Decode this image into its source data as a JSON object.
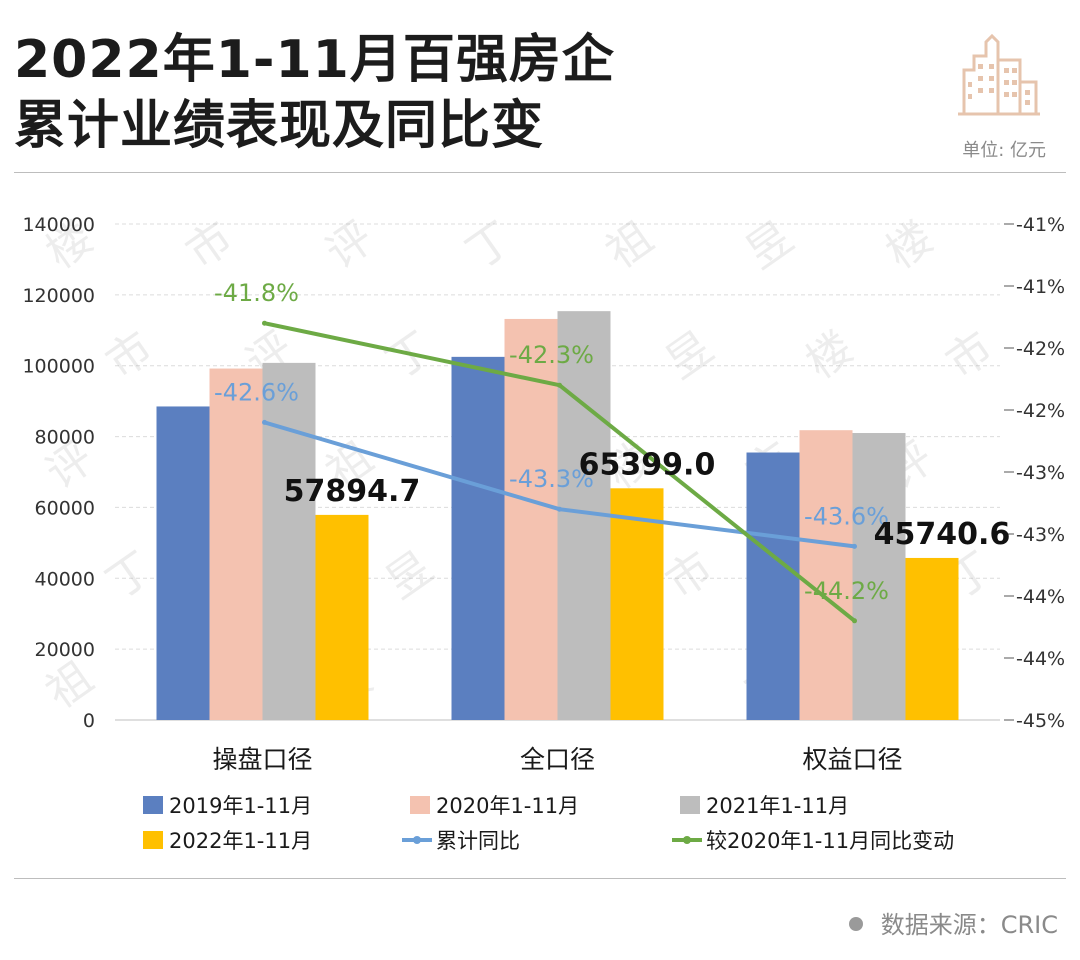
{
  "header": {
    "title_line1": "2022年1-11月百强房企",
    "title_line2": "累计业绩表现及同比变",
    "unit": "单位: 亿元"
  },
  "footer": {
    "source": "数据来源：CRIC"
  },
  "colors": {
    "s2019": "#5b7fc0",
    "s2020": "#f4c2b0",
    "s2021": "#bdbdbd",
    "s2022": "#ffc000",
    "yoy": "#6a9fd8",
    "vs2020": "#6daa45",
    "logo": "#e6c4ad"
  },
  "chart_data": {
    "type": "bar",
    "categories": [
      "操盘口径",
      "全口径",
      "权益口径"
    ],
    "series": [
      {
        "name": "2019年1-11月",
        "values": [
          88500,
          102500,
          75500
        ]
      },
      {
        "name": "2020年1-11月",
        "values": [
          99200,
          113200,
          81800
        ]
      },
      {
        "name": "2021年1-11月",
        "values": [
          100800,
          115400,
          81000
        ]
      },
      {
        "name": "2022年1-11月",
        "values": [
          57894.7,
          65399.0,
          45740.6
        ],
        "labels": [
          "57894.7",
          "65399.0",
          "45740.6"
        ]
      }
    ],
    "lines": [
      {
        "name": "累计同比",
        "axis": "right",
        "values": [
          -42.6,
          -43.3,
          -43.6
        ],
        "labels": [
          "-42.6%",
          "-43.3%",
          "-43.6%"
        ]
      },
      {
        "name": "较2020年1-11月同比变动",
        "axis": "right",
        "values": [
          -41.8,
          -42.3,
          -44.2
        ],
        "labels": [
          "-41.8%",
          "-42.3%",
          "-44.2%"
        ]
      }
    ],
    "y_left": {
      "ticks": [
        "0",
        "20000",
        "40000",
        "60000",
        "80000",
        "100000",
        "120000",
        "140000"
      ],
      "range": [
        0,
        140000
      ]
    },
    "y_right": {
      "ticks": [
        "-45%",
        "-44%",
        "-44%",
        "-43%",
        "-43%",
        "-42%",
        "-42%",
        "-41%",
        "-41%"
      ],
      "range": [
        -45,
        -41
      ]
    },
    "legend": [
      {
        "label": "2019年1-11月",
        "kind": "box"
      },
      {
        "label": "2020年1-11月",
        "kind": "box"
      },
      {
        "label": "2021年1-11月",
        "kind": "box"
      },
      {
        "label": "2022年1-11月",
        "kind": "box"
      },
      {
        "label": "累计同比",
        "kind": "line"
      },
      {
        "label": "较2020年1-11月同比变动",
        "kind": "line"
      }
    ]
  }
}
